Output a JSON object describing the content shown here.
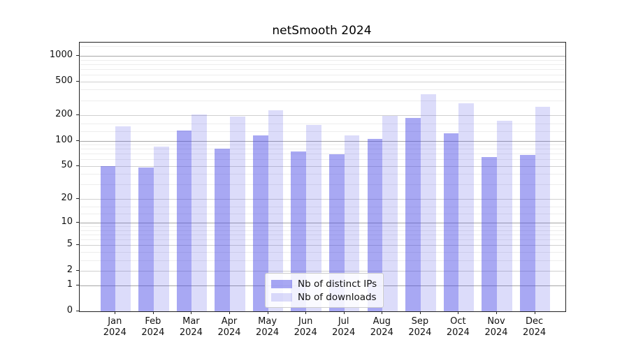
{
  "chart_data": {
    "type": "bar",
    "title": "netSmooth 2024",
    "categories": [
      "Jan",
      "Feb",
      "Mar",
      "Apr",
      "May",
      "Jun",
      "Jul",
      "Aug",
      "Sep",
      "Oct",
      "Nov",
      "Dec"
    ],
    "category_year": "2024",
    "series": [
      {
        "name": "Nb of distinct IPs",
        "color": "#4646e6",
        "alpha": 0.47,
        "values": [
          50,
          48,
          133,
          81,
          115,
          74,
          69,
          105,
          187,
          123,
          64,
          67
        ]
      },
      {
        "name": "Nb of downloads",
        "color": "#4646e6",
        "alpha": 0.19,
        "values": [
          148,
          85,
          203,
          193,
          228,
          153,
          115,
          195,
          352,
          277,
          172,
          250
        ]
      }
    ],
    "yscale": "log1p",
    "ylim": [
      0,
      1431
    ],
    "yticks": [
      0,
      1,
      2,
      5,
      10,
      20,
      50,
      100,
      200,
      500,
      1000
    ],
    "xlabel": "",
    "ylabel": "",
    "grid": true,
    "minor_grid": true,
    "legend_position": "lower center"
  },
  "colors": {
    "bar_dark_on_white": "#ababf4",
    "bar_light_on_white": "#dcdcfa",
    "grid_decade": "#a6a6a6",
    "grid_major": "#d0d0d0",
    "grid_minor": "#ededed",
    "spine": "#222222",
    "background": "#ffffff"
  }
}
